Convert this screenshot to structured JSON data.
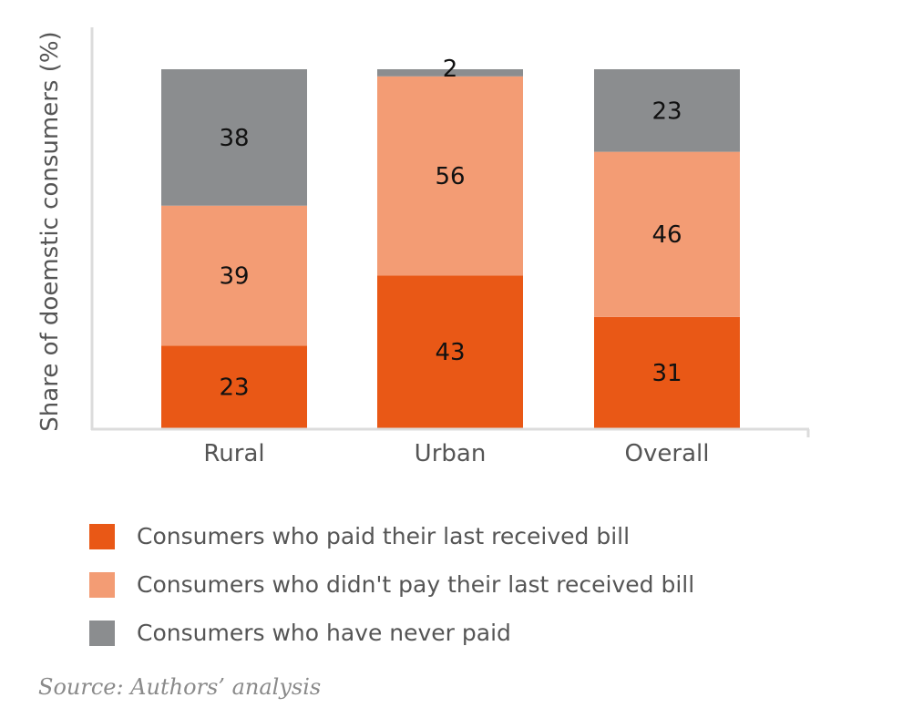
{
  "chart_data": {
    "type": "bar",
    "stacked": true,
    "ylabel": "Share of doemstic consumers (%)",
    "xlabel": "",
    "categories": [
      "Rural",
      "Urban",
      "Overall"
    ],
    "ylim": [
      0,
      100
    ],
    "series": [
      {
        "name": "Consumers who paid their last received bill",
        "color": "#e95816",
        "values": [
          23,
          43,
          31
        ]
      },
      {
        "name": "Consumers who didn't pay their last received bill",
        "color": "#f39c74",
        "values": [
          39,
          56,
          46
        ]
      },
      {
        "name": "Consumers who have never paid",
        "color": "#8b8d8f",
        "values": [
          38,
          2,
          23
        ]
      }
    ],
    "data_label_color": "#111111",
    "legend_position": "bottom",
    "grid": false
  },
  "source": "Source: Authors’ analysis"
}
